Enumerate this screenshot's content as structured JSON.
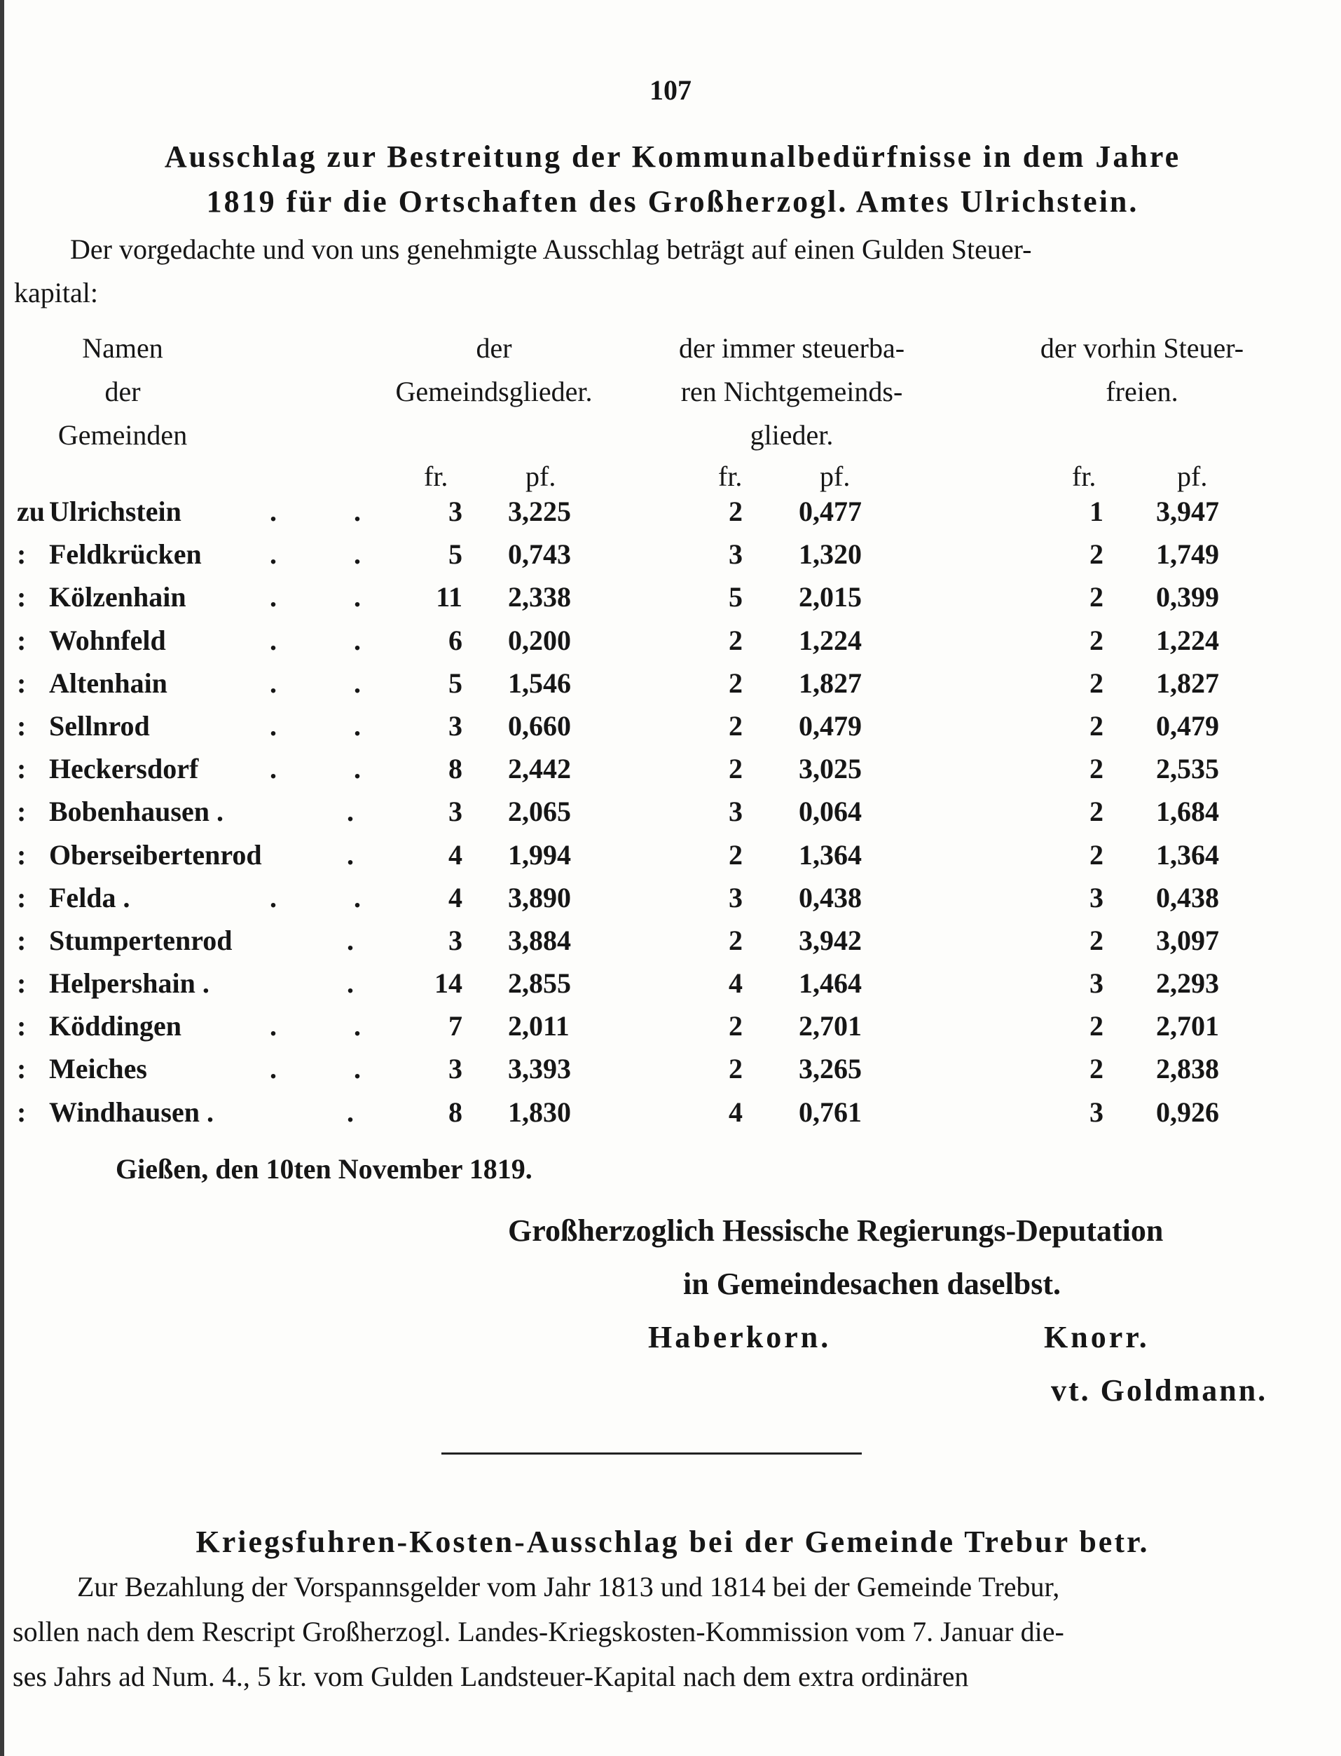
{
  "page_number": "107",
  "title": {
    "line1": "Ausschlag zur Bestreitung der Kommunalbedürfnisse in dem Jahre",
    "line2": "1819 für die Ortschaften des Großherzogl. Amtes Ulrichstein."
  },
  "intro": {
    "line1": "Der vorgedachte und von uns genehmigte Ausschlag beträgt auf einen Gulden Steuer-",
    "line2": "kapital:"
  },
  "table": {
    "headers": {
      "names": [
        "Namen",
        "der",
        "Gemeinden"
      ],
      "members": [
        "der",
        "Gemeindsglieder."
      ],
      "nonmembers": [
        "der immer steuerba-",
        "ren Nichtgemeinds-",
        "glieder."
      ],
      "formerly_exempt": [
        "der vorhin Steuer-",
        "freien."
      ]
    },
    "unit_fr": "fr.",
    "unit_pf": "pf.",
    "rows": [
      {
        "prefix": "zu",
        "name": "Ulrichstein",
        "dots": ". .",
        "fr1": "3",
        "pf1": "3,225",
        "fr2": "2",
        "pf2": "0,477",
        "fr3": "1",
        "pf3": "3,947"
      },
      {
        "prefix": ":",
        "name": "Feldkrücken",
        "dots": ". .",
        "fr1": "5",
        "pf1": "0,743",
        "fr2": "3",
        "pf2": "1,320",
        "fr3": "2",
        "pf3": "1,749"
      },
      {
        "prefix": ":",
        "name": "Kölzenhain",
        "dots": ". .",
        "fr1": "11",
        "pf1": "2,338",
        "fr2": "5",
        "pf2": "2,015",
        "fr3": "2",
        "pf3": "0,399"
      },
      {
        "prefix": ":",
        "name": "Wohnfeld",
        "dots": ". .",
        "fr1": "6",
        "pf1": "0,200",
        "fr2": "2",
        "pf2": "1,224",
        "fr3": "2",
        "pf3": "1,224"
      },
      {
        "prefix": ":",
        "name": "Altenhain",
        "dots": ". .",
        "fr1": "5",
        "pf1": "1,546",
        "fr2": "2",
        "pf2": "1,827",
        "fr3": "2",
        "pf3": "1,827"
      },
      {
        "prefix": ":",
        "name": "Sellnrod",
        "dots": ". .",
        "fr1": "3",
        "pf1": "0,660",
        "fr2": "2",
        "pf2": "0,479",
        "fr3": "2",
        "pf3": "0,479"
      },
      {
        "prefix": ":",
        "name": "Heckersdorf",
        "dots": ". .",
        "fr1": "8",
        "pf1": "2,442",
        "fr2": "2",
        "pf2": "3,025",
        "fr3": "2",
        "pf3": "2,535"
      },
      {
        "prefix": ":",
        "name": "Bobenhausen .",
        "dots": ".",
        "fr1": "3",
        "pf1": "2,065",
        "fr2": "3",
        "pf2": "0,064",
        "fr3": "2",
        "pf3": "1,684"
      },
      {
        "prefix": ":",
        "name": "Oberseibertenrod",
        "dots": ".",
        "fr1": "4",
        "pf1": "1,994",
        "fr2": "2",
        "pf2": "1,364",
        "fr3": "2",
        "pf3": "1,364"
      },
      {
        "prefix": ":",
        "name": "Felda .",
        "dots": ". .",
        "fr1": "4",
        "pf1": "3,890",
        "fr2": "3",
        "pf2": "0,438",
        "fr3": "3",
        "pf3": "0,438"
      },
      {
        "prefix": ":",
        "name": "Stumpertenrod",
        "dots": ".",
        "fr1": "3",
        "pf1": "3,884",
        "fr2": "2",
        "pf2": "3,942",
        "fr3": "2",
        "pf3": "3,097"
      },
      {
        "prefix": ":",
        "name": "Helpershain .",
        "dots": ".",
        "fr1": "14",
        "pf1": "2,855",
        "fr2": "4",
        "pf2": "1,464",
        "fr3": "3",
        "pf3": "2,293"
      },
      {
        "prefix": ":",
        "name": "Köddingen",
        "dots": ". .",
        "fr1": "7",
        "pf1": "2,011",
        "fr2": "2",
        "pf2": "2,701",
        "fr3": "2",
        "pf3": "2,701"
      },
      {
        "prefix": ":",
        "name": "Meiches",
        "dots": ". .",
        "fr1": "3",
        "pf1": "3,393",
        "fr2": "2",
        "pf2": "3,265",
        "fr3": "2",
        "pf3": "2,838"
      },
      {
        "prefix": ":",
        "name": "Windhausen .",
        "dots": ".",
        "fr1": "8",
        "pf1": "1,830",
        "fr2": "4",
        "pf2": "0,761",
        "fr3": "3",
        "pf3": "0,926"
      }
    ]
  },
  "dateline": "Gießen, den 10ten November 1819.",
  "signature": {
    "authority_line1": "Großherzoglich Hessische Regierungs-Deputation",
    "authority_line2": "in Gemeindesachen daselbst.",
    "name1": "Haberkorn.",
    "name2": "Knorr.",
    "name3": "vt. Goldmann."
  },
  "section2": {
    "title": "Kriegsfuhren-Kosten-Ausschlag bei der Gemeinde Trebur betr.",
    "line1": "Zur Bezahlung der Vorspannsgelder vom Jahr 1813 und 1814 bei der Gemeinde Trebur,",
    "line2": "sollen nach dem Rescript Großherzogl. Landes-Kriegskosten-Kommission vom 7. Januar die-",
    "line3": "ses Jahrs ad Num. 4., 5 kr. vom Gulden Landsteuer-Kapital nach dem extra ordinären"
  }
}
